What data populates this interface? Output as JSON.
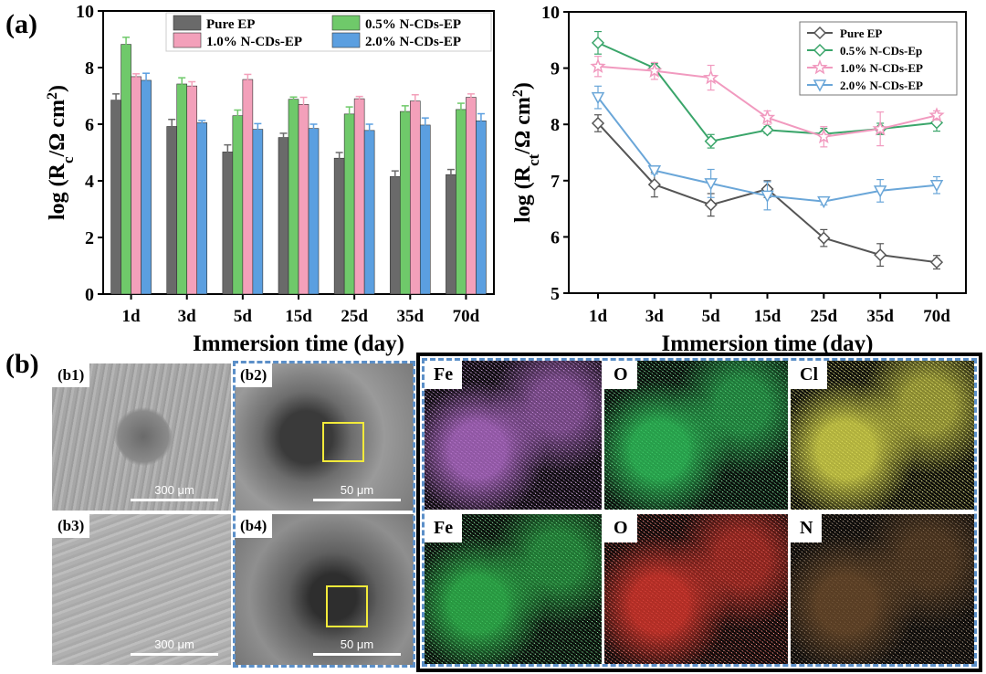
{
  "panel_a_label": "(a)",
  "panel_b_label": "(b)",
  "chart_data": [
    {
      "type": "bar",
      "categories": [
        "1d",
        "3d",
        "5d",
        "15d",
        "25d",
        "35d",
        "70d"
      ],
      "series": [
        {
          "name": "Pure EP",
          "values": [
            6.85,
            5.92,
            5.02,
            5.53,
            4.8,
            4.15,
            4.22
          ],
          "errors": [
            0.22,
            0.25,
            0.25,
            0.15,
            0.2,
            0.2,
            0.18
          ]
        },
        {
          "name": "0.5% N-CDs-EP",
          "values": [
            8.82,
            7.42,
            6.3,
            6.88,
            6.36,
            6.45,
            6.52
          ],
          "errors": [
            0.25,
            0.22,
            0.2,
            0.08,
            0.25,
            0.2,
            0.22
          ]
        },
        {
          "name": "1.0% N-CDs-EP",
          "values": [
            7.68,
            7.35,
            7.58,
            6.7,
            6.9,
            6.82,
            6.95
          ],
          "errors": [
            0.1,
            0.15,
            0.18,
            0.25,
            0.08,
            0.22,
            0.12
          ]
        },
        {
          "name": "2.0% N-CDs-EP",
          "values": [
            7.55,
            6.05,
            5.82,
            5.85,
            5.78,
            5.97,
            6.12
          ],
          "errors": [
            0.25,
            0.08,
            0.2,
            0.15,
            0.22,
            0.25,
            0.25
          ]
        }
      ],
      "colors": [
        "#6a6a6a",
        "#6fc96a",
        "#f3a0ba",
        "#5b9fe0"
      ],
      "xlabel": "Immersion time (day)",
      "ylabel_main": "log (R",
      "ylabel_sub": "c",
      "ylabel_tail": "/Ω cm",
      "ylabel_sup": "2",
      "ylabel_close": ")",
      "ylim": [
        0,
        10
      ],
      "yticks": [
        "0",
        "2",
        "4",
        "6",
        "8",
        "10"
      ],
      "legend_position": "top"
    },
    {
      "type": "line",
      "categories": [
        "1d",
        "3d",
        "5d",
        "15d",
        "25d",
        "35d",
        "70d"
      ],
      "series": [
        {
          "name": "Pure EP",
          "values": [
            8.02,
            6.93,
            6.57,
            6.85,
            5.98,
            5.68,
            5.55
          ],
          "errors": [
            0.15,
            0.22,
            0.2,
            0.15,
            0.15,
            0.2,
            0.12
          ],
          "marker": "diamond"
        },
        {
          "name": "0.5% N-CDs-Ep",
          "values": [
            9.45,
            9.0,
            7.7,
            7.9,
            7.83,
            7.92,
            8.03
          ],
          "errors": [
            0.2,
            0.08,
            0.12,
            0.06,
            0.1,
            0.1,
            0.15
          ],
          "marker": "diamond"
        },
        {
          "name": "1.0% N-CDs-EP",
          "values": [
            9.03,
            8.95,
            8.83,
            8.12,
            7.78,
            7.92,
            8.16
          ],
          "errors": [
            0.18,
            0.15,
            0.22,
            0.12,
            0.18,
            0.3,
            0.08
          ],
          "marker": "star"
        },
        {
          "name": "2.0% N-CDs-EP",
          "values": [
            8.48,
            7.18,
            6.95,
            6.73,
            6.63,
            6.82,
            6.92
          ],
          "errors": [
            0.2,
            0.06,
            0.25,
            0.25,
            0.06,
            0.2,
            0.15
          ],
          "marker": "triangle-down"
        }
      ],
      "colors": [
        "#555555",
        "#3aa56a",
        "#f19abf",
        "#6aa6d8"
      ],
      "xlabel": "Immersion time (day)",
      "ylabel_main": "log (R",
      "ylabel_sub": "ct",
      "ylabel_tail": "/Ω cm",
      "ylabel_sup": "2",
      "ylabel_close": ")",
      "ylim": [
        5,
        10
      ],
      "yticks": [
        "5",
        "6",
        "7",
        "8",
        "9",
        "10"
      ],
      "legend_position": "top-right"
    }
  ],
  "sem": {
    "b1": {
      "label": "(b1)",
      "scale": "300 μm"
    },
    "b2": {
      "label": "(b2)",
      "scale": "50 μm"
    },
    "b3": {
      "label": "(b3)",
      "scale": "300 μm"
    },
    "b4": {
      "label": "(b4)",
      "scale": "50 μm"
    }
  },
  "eds": [
    {
      "label": "Fe",
      "color": "#b06ac8"
    },
    {
      "label": "O",
      "color": "#2ec25a"
    },
    {
      "label": "Cl",
      "color": "#d8d84a"
    },
    {
      "label": "Fe",
      "color": "#2fb94e"
    },
    {
      "label": "O",
      "color": "#d8362c"
    },
    {
      "label": "N",
      "color": "#6b4a2a"
    }
  ]
}
